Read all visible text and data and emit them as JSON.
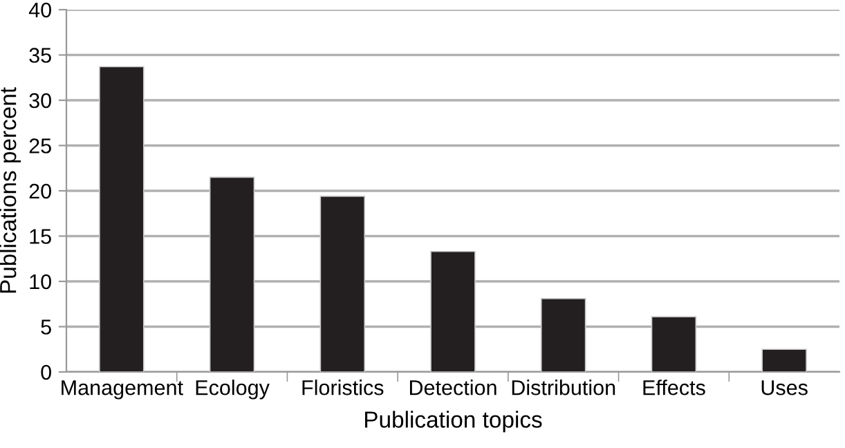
{
  "chart_data": {
    "type": "bar",
    "xlabel": "Publication topics",
    "ylabel": "Publications percent",
    "categories": [
      "Management",
      "Ecology",
      "Floristics",
      "Detection",
      "Distribution",
      "Effects",
      "Uses"
    ],
    "values": [
      33.7,
      21.5,
      19.4,
      13.3,
      8.1,
      6.1,
      2.5
    ],
    "color": "#231f20",
    "ylim": [
      0,
      40
    ],
    "yticks": [
      0,
      5,
      10,
      15,
      20,
      25,
      30,
      35,
      40
    ],
    "grid": "y"
  }
}
